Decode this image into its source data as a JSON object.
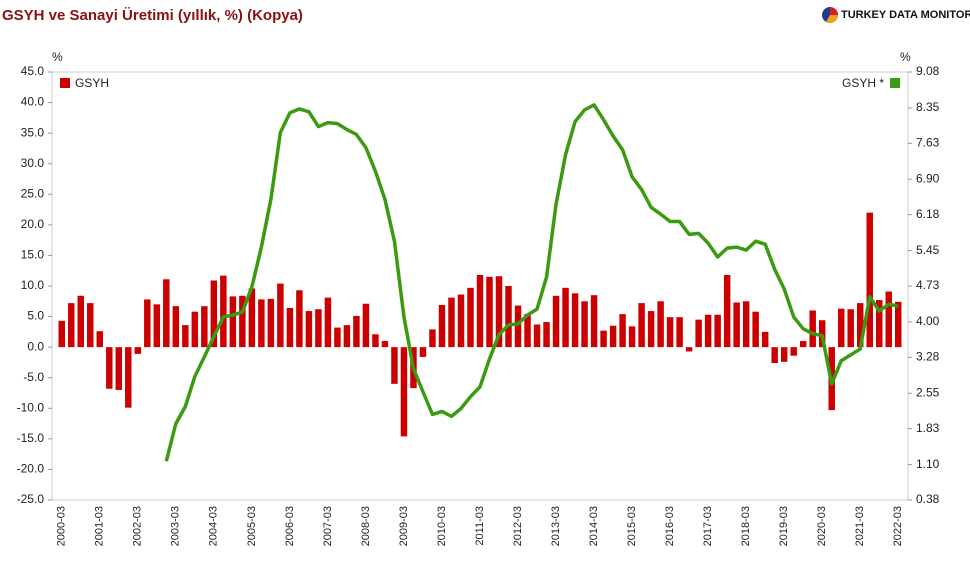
{
  "logo": "TURKEY DATA MONITOR",
  "chart_data": {
    "type": "bar_line",
    "title": "GSYH ve Sanayi Üretimi (yıllık, %) (Kopya)",
    "y_label": "%",
    "y2_label": "%",
    "categories": [
      "2000-03",
      null,
      null,
      null,
      "2001-03",
      null,
      null,
      null,
      "2002-03",
      null,
      null,
      null,
      "2003-03",
      null,
      null,
      null,
      "2004-03",
      null,
      null,
      null,
      "2005-03",
      null,
      null,
      null,
      "2006-03",
      null,
      null,
      null,
      "2007-03",
      null,
      null,
      null,
      "2008-03",
      null,
      null,
      null,
      "2009-03",
      null,
      null,
      null,
      "2010-03",
      null,
      null,
      null,
      "2011-03",
      null,
      null,
      null,
      "2012-03",
      null,
      null,
      null,
      "2013-03",
      null,
      null,
      null,
      "2014-03",
      null,
      null,
      null,
      "2015-03",
      null,
      null,
      null,
      "2016-03",
      null,
      null,
      null,
      "2017-03",
      null,
      null,
      null,
      "2018-03",
      null,
      null,
      null,
      "2019-03",
      null,
      null,
      null,
      "2020-03",
      null,
      null,
      null,
      "2021-03",
      null,
      null,
      null,
      "2022-03"
    ],
    "series": [
      {
        "name": "GSYH",
        "color": "#cc0000",
        "type": "bar",
        "values": [
          4.3,
          7.2,
          8.4,
          7.2,
          2.6,
          -6.8,
          -7.0,
          -9.9,
          -1.1,
          7.8,
          7.0,
          11.1,
          6.7,
          3.6,
          5.8,
          6.7,
          10.9,
          11.7,
          8.3,
          8.4,
          9.6,
          7.8,
          7.9,
          10.4,
          6.4,
          9.3,
          5.9,
          6.2,
          8.1,
          3.2,
          3.6,
          5.1,
          7.1,
          2.1,
          1.0,
          -6.0,
          -14.6,
          -6.7,
          -1.6,
          2.9,
          6.9,
          8.1,
          8.6,
          9.7,
          11.8,
          11.5,
          11.6,
          10.0,
          6.8,
          5.4,
          3.7,
          4.1,
          8.4,
          9.7,
          8.8,
          7.5,
          8.5,
          2.7,
          3.5,
          5.4,
          3.4,
          7.2,
          5.9,
          7.5,
          4.9,
          4.9,
          -0.7,
          4.5,
          5.3,
          5.3,
          11.8,
          7.3,
          7.5,
          5.8,
          2.5,
          -2.6,
          -2.4,
          -1.4,
          1.0,
          6.0,
          4.4,
          -10.3,
          6.3,
          6.2,
          7.2,
          22.0,
          7.7,
          9.1,
          7.4
        ]
      },
      {
        "name": "GSYH *",
        "color": "#3a9a10",
        "type": "line",
        "axis": "y2",
        "values": [
          null,
          null,
          null,
          null,
          null,
          null,
          null,
          null,
          null,
          null,
          null,
          1.17,
          1.93,
          2.28,
          2.89,
          3.29,
          3.7,
          4.1,
          4.14,
          4.2,
          4.71,
          5.52,
          6.49,
          7.85,
          8.25,
          8.33,
          8.27,
          7.97,
          8.05,
          8.03,
          7.91,
          7.81,
          7.54,
          7.06,
          6.49,
          5.64,
          4.1,
          3.05,
          2.58,
          2.12,
          2.18,
          2.08,
          2.24,
          2.48,
          2.68,
          3.25,
          3.74,
          3.94,
          3.96,
          4.14,
          4.26,
          4.91,
          6.39,
          7.4,
          8.07,
          8.31,
          8.41,
          8.11,
          7.78,
          7.5,
          6.95,
          6.69,
          6.33,
          6.19,
          6.04,
          6.04,
          5.78,
          5.8,
          5.6,
          5.32,
          5.5,
          5.52,
          5.46,
          5.64,
          5.58,
          5.07,
          4.67,
          4.1,
          3.86,
          3.76,
          3.72,
          2.74,
          3.21,
          3.33,
          3.45,
          4.51,
          4.22,
          4.36,
          4.32
        ]
      }
    ],
    "ylim": [
      -25,
      45
    ],
    "yticks": [
      {
        "value": 45,
        "label": "45.0"
      },
      {
        "value": 40,
        "label": "40.0"
      },
      {
        "value": 35,
        "label": "35.0"
      },
      {
        "value": 30,
        "label": "30.0"
      },
      {
        "value": 25,
        "label": "25.0"
      },
      {
        "value": 20,
        "label": "20.0"
      },
      {
        "value": 15,
        "label": "15.0"
      },
      {
        "value": 10,
        "label": "10.0"
      },
      {
        "value": 5,
        "label": "5.0"
      },
      {
        "value": 0,
        "label": "0.0"
      },
      {
        "value": -5,
        "label": "-5.0"
      },
      {
        "value": -10,
        "label": "-10.0"
      },
      {
        "value": -15,
        "label": "-15.0"
      },
      {
        "value": -20,
        "label": "-20.0"
      },
      {
        "value": -25,
        "label": "-25.0"
      }
    ],
    "y2lim": [
      0.38,
      9.08
    ],
    "y2ticks": [
      9.08,
      8.35,
      7.63,
      {
        "value": 6.9,
        "label": "6.90"
      },
      6.18,
      5.45,
      4.73,
      {
        "value": 4,
        "label": "4.00"
      },
      3.28,
      2.55,
      1.83,
      {
        "value": 1.1,
        "label": "1.10"
      },
      0.38
    ],
    "grid": false,
    "legend": "top"
  }
}
